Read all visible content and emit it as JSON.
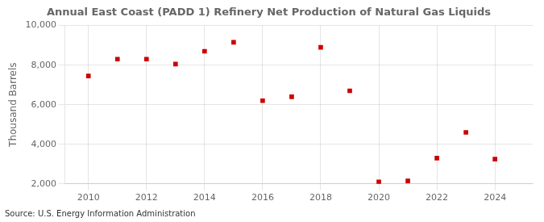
{
  "chart_data": {
    "type": "scatter",
    "title": "Annual East Coast (PADD 1) Refinery Net Production of Natural Gas Liquids",
    "ylabel": "Thousand Barrels",
    "annotation": "Source: U.S. Energy Information Administration",
    "x": [
      2010,
      2011,
      2012,
      2013,
      2014,
      2015,
      2016,
      2017,
      2018,
      2019,
      2020,
      2021,
      2022,
      2023,
      2024
    ],
    "values": [
      7450,
      8300,
      8300,
      8050,
      8700,
      9150,
      6200,
      6400,
      8900,
      6700,
      2100,
      2150,
      3300,
      4600,
      3250
    ],
    "color": "#cc0000",
    "marker": "square",
    "xlim": [
      2009.2,
      2025.3
    ],
    "xticks": [
      2010,
      2012,
      2014,
      2016,
      2018,
      2020,
      2022,
      2024
    ],
    "ylim": [
      2000,
      10000
    ],
    "yticks": [
      {
        "value": 2000,
        "label": "2,000"
      },
      {
        "value": 4000,
        "label": "4,000"
      },
      {
        "value": 6000,
        "label": "6,000"
      },
      {
        "value": 8000,
        "label": "8,000"
      },
      {
        "value": 10000,
        "label": "10,000"
      }
    ],
    "grid": true
  }
}
